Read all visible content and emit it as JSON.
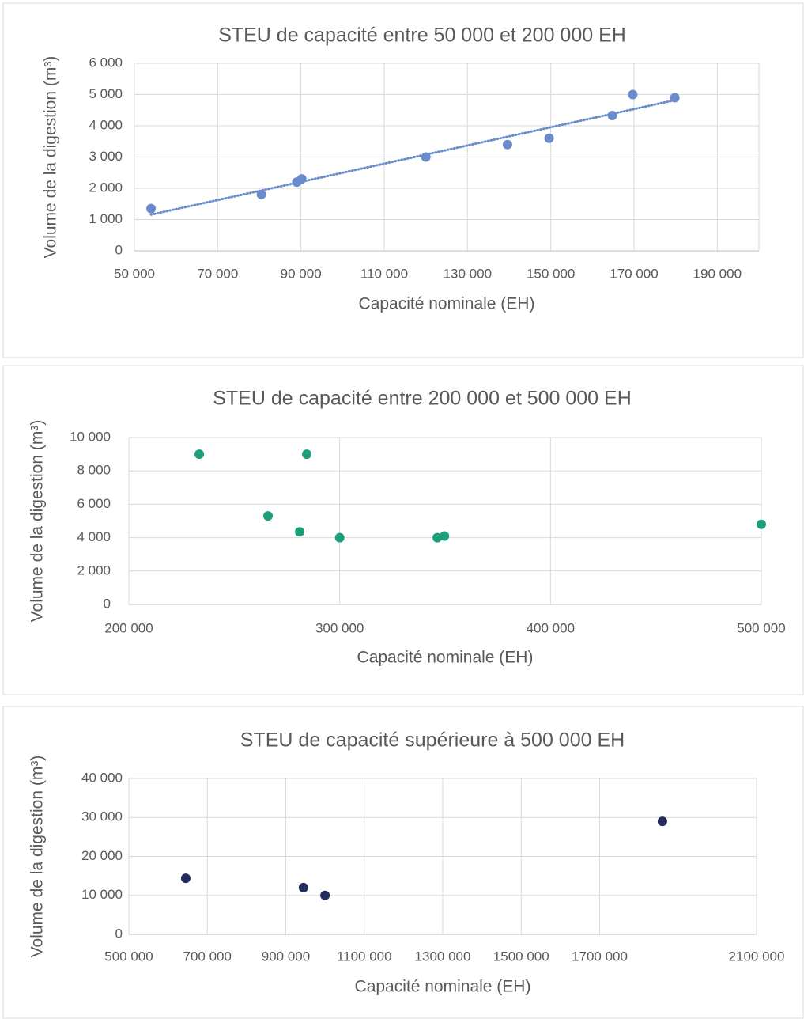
{
  "chart_data": [
    {
      "type": "scatter",
      "title": "STEU de capacité entre 50 000 et 200 000 EH",
      "x_label": "Capacité nominale (EH)",
      "y_label": "Volume de la digestion (m³)",
      "xlim": [
        50000,
        200000
      ],
      "ylim": [
        0,
        6000
      ],
      "grid": true,
      "xticks": [
        {
          "value": 50000,
          "label": "50 000"
        },
        {
          "value": 70000,
          "label": "70 000"
        },
        {
          "value": 90000,
          "label": "90 000"
        },
        {
          "value": 110000,
          "label": "110 000"
        },
        {
          "value": 130000,
          "label": "130 000"
        },
        {
          "value": 150000,
          "label": "150 000"
        },
        {
          "value": 170000,
          "label": "170 000"
        },
        {
          "value": 190000,
          "label": "190 000"
        }
      ],
      "yticks": [
        0,
        {
          "value": 1000,
          "label": "1 000"
        },
        {
          "value": 2000,
          "label": "2 000"
        },
        {
          "value": 3000,
          "label": "3 000"
        },
        {
          "value": 4000,
          "label": "4 000"
        },
        {
          "value": 5000,
          "label": "5 000"
        },
        {
          "value": 6000,
          "label": "6 000"
        }
      ],
      "series": [
        {
          "color": "#6a8ccc",
          "trendline": "linear",
          "x": [
            54000,
            80500,
            89000,
            90200,
            120000,
            139600,
            149600,
            164800,
            169700,
            179800
          ],
          "values": [
            1350,
            1800,
            2200,
            2300,
            3000,
            3400,
            3600,
            4330,
            5000,
            4900
          ]
        }
      ]
    },
    {
      "type": "scatter",
      "title": "STEU de capacité entre 200 000 et 500 000 EH",
      "x_label": "Capacité nominale (EH)",
      "y_label": "Volume de la digestion (m³)",
      "xlim": [
        200000,
        500000
      ],
      "ylim": [
        0,
        10000
      ],
      "grid": true,
      "xticks": [
        {
          "value": 200000,
          "label": "200 000"
        },
        {
          "value": 300000,
          "label": "300 000"
        },
        {
          "value": 400000,
          "label": "400 000"
        },
        {
          "value": 500000,
          "label": "500 000"
        }
      ],
      "yticks": [
        0,
        {
          "value": 2000,
          "label": "2 000"
        },
        {
          "value": 4000,
          "label": "4 000"
        },
        {
          "value": 6000,
          "label": "6 000"
        },
        {
          "value": 8000,
          "label": "8 000"
        },
        {
          "value": 10000,
          "label": "10 000"
        }
      ],
      "series": [
        {
          "color": "#1a9f7a",
          "x": [
            233400,
            266000,
            281000,
            284400,
            300000,
            346300,
            349700,
            500000
          ],
          "values": [
            9000,
            5300,
            4350,
            9000,
            4000,
            4000,
            4100,
            4800
          ]
        }
      ]
    },
    {
      "type": "scatter",
      "title": "STEU de capacité supérieure à 500 000 EH",
      "x_label": "Capacité nominale (EH)",
      "y_label": "Volume de la digestion (m³)",
      "xlim": [
        500000,
        2100000
      ],
      "ylim": [
        0,
        40000
      ],
      "grid": true,
      "xticks": [
        {
          "value": 500000,
          "label": "500 000"
        },
        {
          "value": 700000,
          "label": "700 000"
        },
        {
          "value": 900000,
          "label": "900 000"
        },
        {
          "value": 1100000,
          "label": "1100 000"
        },
        {
          "value": 1300000,
          "label": "1300 000"
        },
        {
          "value": 1500000,
          "label": "1500 000"
        },
        {
          "value": 1700000,
          "label": "1700 000"
        },
        {
          "value": 2100000,
          "label": "2100 000"
        }
      ],
      "yticks": [
        0,
        {
          "value": 10000,
          "label": "10 000"
        },
        {
          "value": 20000,
          "label": "20 000"
        },
        {
          "value": 30000,
          "label": "30 000"
        },
        {
          "value": 40000,
          "label": "40 000"
        }
      ],
      "series": [
        {
          "color": "#232b5e",
          "x": [
            645000,
            945000,
            1000000,
            1860000
          ],
          "values": [
            14400,
            12000,
            10000,
            29000
          ]
        }
      ]
    }
  ]
}
